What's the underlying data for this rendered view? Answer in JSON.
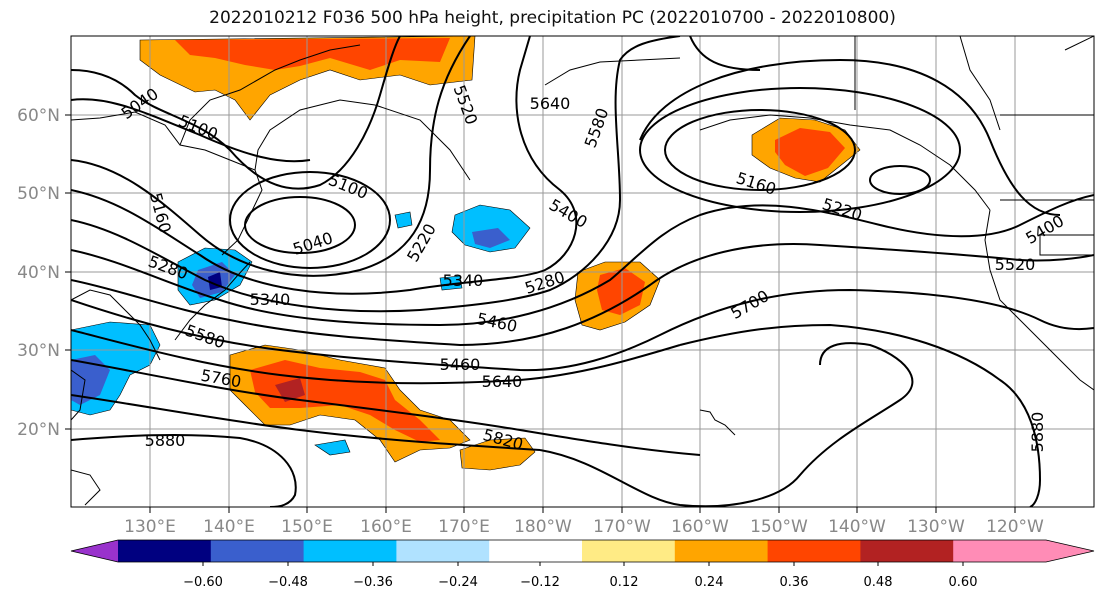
{
  "title": "2022010212 F036 500 hPa height, precipitation PC (2022010700 - 2022010800)",
  "map": {
    "lon_ticks": [
      "130°E",
      "140°E",
      "150°E",
      "160°E",
      "170°E",
      "180°W",
      "170°W",
      "160°W",
      "150°W",
      "140°W",
      "130°W",
      "120°W"
    ],
    "lat_ticks": [
      "20°N",
      "30°N",
      "40°N",
      "50°N",
      "60°N"
    ],
    "contour_labels": [
      "5040",
      "5100",
      "5520",
      "5640",
      "5580",
      "5460",
      "5340",
      "5280",
      "5100",
      "5160",
      "5040",
      "5220",
      "5400",
      "5160",
      "5220",
      "5280",
      "5340",
      "5460",
      "5580",
      "5760",
      "5880",
      "5820",
      "5640",
      "5700",
      "5400",
      "5520",
      "5880"
    ]
  },
  "colorbar": {
    "tick_labels": [
      "−0.60",
      "−0.48",
      "−0.36",
      "−0.24",
      "−0.12",
      "0.12",
      "0.24",
      "0.36",
      "0.48",
      "0.60"
    ],
    "colors": [
      "#9932cc",
      "#000080",
      "#3a5fcd",
      "#00bfff",
      "#b0e2ff",
      "#ffffff",
      "#ffeb85",
      "#ffa500",
      "#ff4500",
      "#b22222",
      "#ff8cb6",
      "#ff8cb6"
    ]
  }
}
